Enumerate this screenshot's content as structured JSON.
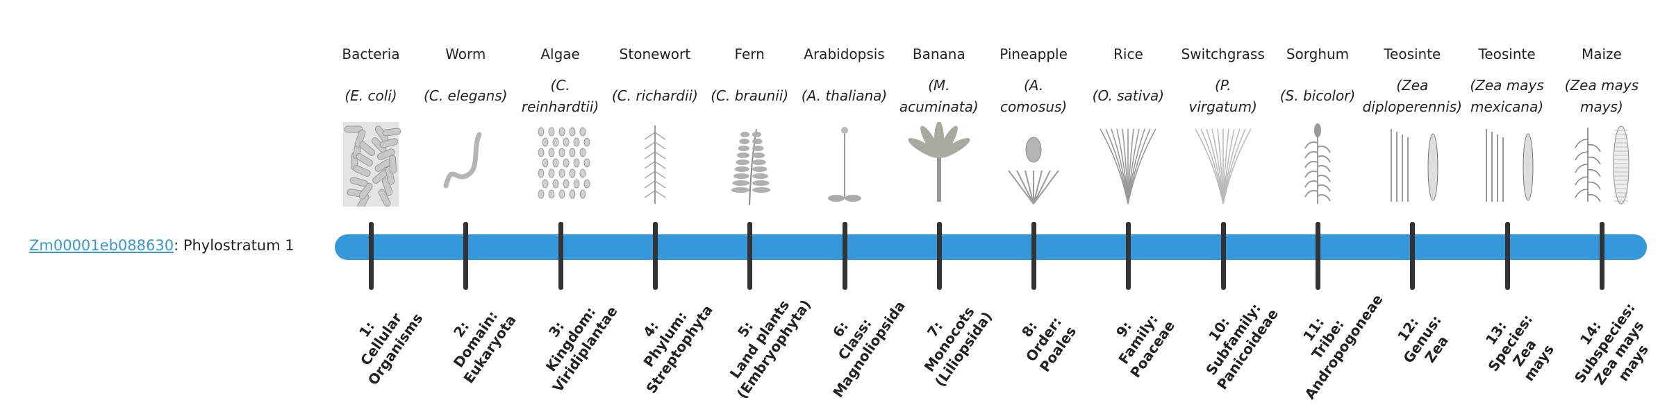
{
  "gene": {
    "id": "Zm00001eb088630",
    "suffix": ": Phylostratum 1"
  },
  "colors": {
    "bar": "#3498db",
    "tick": "#333333",
    "link": "#3498db",
    "illustration": "#9a9a9a"
  },
  "organisms": [
    {
      "common": "Bacteria",
      "sci_lines": [
        "(E. coli)"
      ],
      "icon": "bacteria-rods-icon"
    },
    {
      "common": "Worm",
      "sci_lines": [
        "(C. elegans)"
      ],
      "icon": "worm-icon"
    },
    {
      "common": "Algae",
      "sci_lines": [
        "(C.",
        "reinhardtii)"
      ],
      "icon": "algae-cells-icon"
    },
    {
      "common": "Stonewort",
      "sci_lines": [
        "(C. richardii)"
      ],
      "icon": "stonewort-icon"
    },
    {
      "common": "Fern",
      "sci_lines": [
        "(C. braunii)"
      ],
      "icon": "fern-icon"
    },
    {
      "common": "Arabidopsis",
      "sci_lines": [
        "(A. thaliana)"
      ],
      "icon": "arabidopsis-icon"
    },
    {
      "common": "Banana",
      "sci_lines": [
        "(M.",
        "acuminata)"
      ],
      "icon": "banana-plant-icon"
    },
    {
      "common": "Pineapple",
      "sci_lines": [
        "(A.",
        "comosus)"
      ],
      "icon": "pineapple-icon"
    },
    {
      "common": "Rice",
      "sci_lines": [
        "(O. sativa)"
      ],
      "icon": "rice-plant-icon"
    },
    {
      "common": "Switchgrass",
      "sci_lines": [
        "(P.",
        "virgatum)"
      ],
      "icon": "switchgrass-icon"
    },
    {
      "common": "Sorghum",
      "sci_lines": [
        "(S. bicolor)"
      ],
      "icon": "sorghum-icon"
    },
    {
      "common": "Teosinte",
      "sci_lines": [
        "(Zea",
        "diploperennis)"
      ],
      "icon": "teosinte-icon"
    },
    {
      "common": "Teosinte",
      "sci_lines": [
        "(Zea mays",
        "mexicana)"
      ],
      "icon": "teosinte-icon"
    },
    {
      "common": "Maize",
      "sci_lines": [
        "(Zea mays",
        "mays)"
      ],
      "icon": "maize-icon"
    }
  ],
  "strata": [
    {
      "lines": [
        "1:",
        "Cellular",
        "Organisms"
      ]
    },
    {
      "lines": [
        "2:",
        "Domain:",
        "Eukaryota"
      ]
    },
    {
      "lines": [
        "3:",
        "Kingdom:",
        "Viridiplantae"
      ]
    },
    {
      "lines": [
        "4:",
        "Phylum:",
        "Streptophyta"
      ]
    },
    {
      "lines": [
        "5:",
        "Land plants",
        "(Embryophyta)"
      ]
    },
    {
      "lines": [
        "6:",
        "Class:",
        "Magnoliopsida"
      ]
    },
    {
      "lines": [
        "7:",
        "Monocots",
        "(Liliopsida)"
      ]
    },
    {
      "lines": [
        "8:",
        "Order:",
        "Poales"
      ]
    },
    {
      "lines": [
        "9:",
        "Family:",
        "Poaceae"
      ]
    },
    {
      "lines": [
        "10:",
        "Subfamily:",
        "Panicoideae"
      ]
    },
    {
      "lines": [
        "11:",
        "Tribe:",
        "Andropogoneae"
      ]
    },
    {
      "lines": [
        "12:",
        "Genus:",
        "Zea"
      ]
    },
    {
      "lines": [
        "13:",
        "Species:",
        "Zea",
        "mays"
      ]
    },
    {
      "lines": [
        "14:",
        "Subspecies:",
        "Zea mays",
        "mays"
      ]
    }
  ]
}
